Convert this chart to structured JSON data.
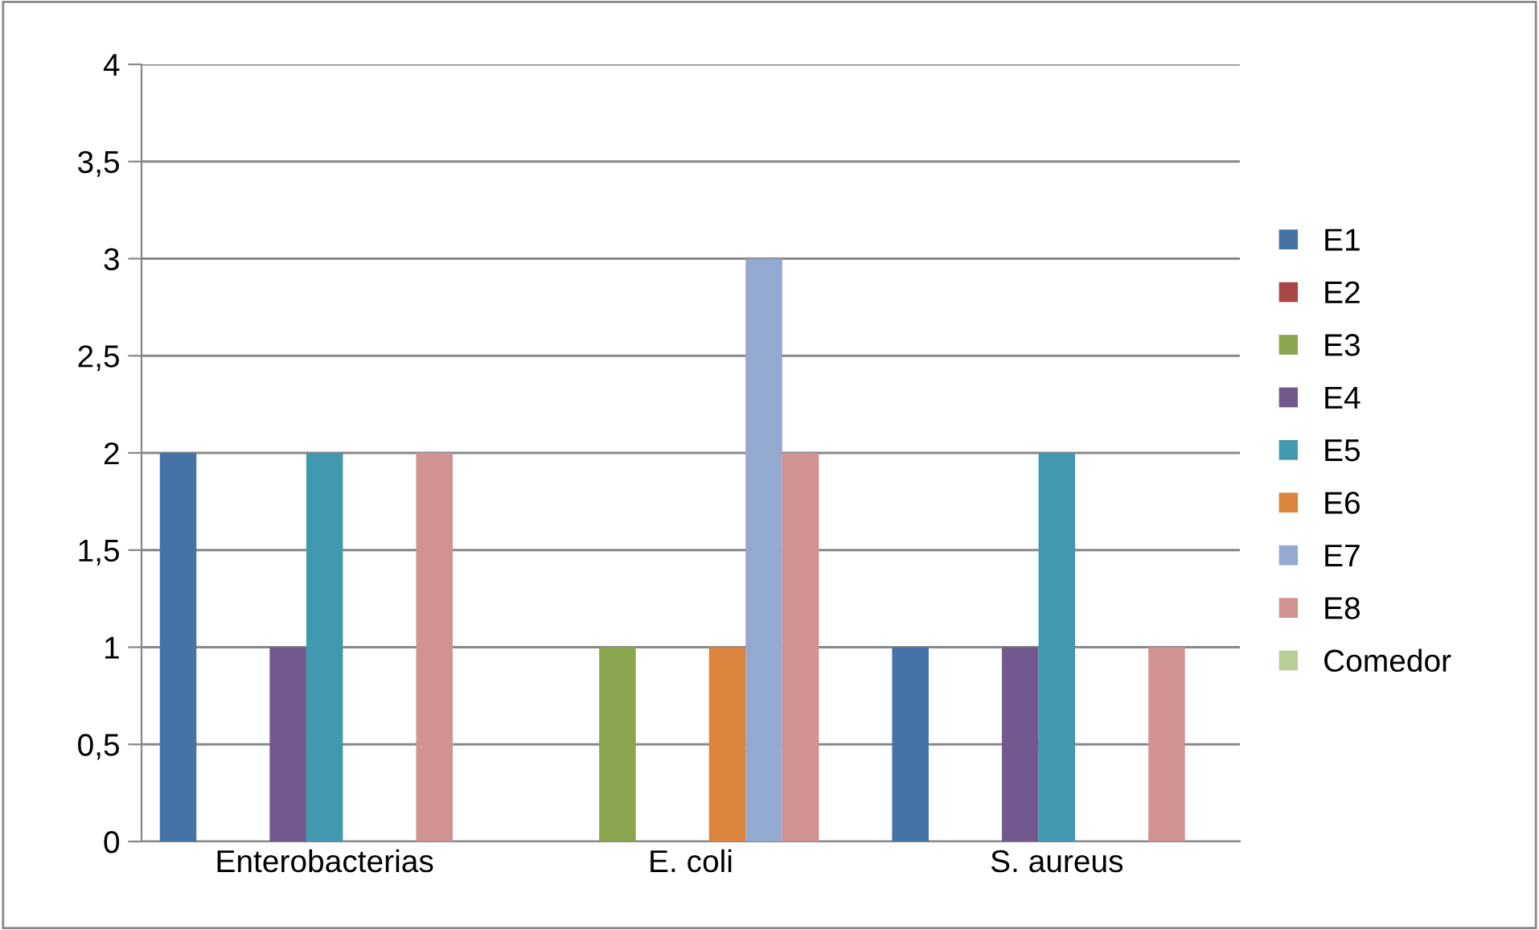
{
  "chart_data": {
    "type": "bar",
    "categories": [
      "Enterobacterias",
      "E. coli",
      "S. aureus"
    ],
    "series": [
      {
        "name": "E1",
        "color": "#4572a7",
        "values": [
          2,
          0,
          1
        ]
      },
      {
        "name": "E2",
        "color": "#aa4643",
        "values": [
          0,
          0,
          0
        ]
      },
      {
        "name": "E3",
        "color": "#89a54e",
        "values": [
          0,
          1,
          0
        ]
      },
      {
        "name": "E4",
        "color": "#71588f",
        "values": [
          1,
          0,
          1
        ]
      },
      {
        "name": "E5",
        "color": "#4198af",
        "values": [
          2,
          0,
          2
        ]
      },
      {
        "name": "E6",
        "color": "#db843d",
        "values": [
          0,
          1,
          0
        ]
      },
      {
        "name": "E7",
        "color": "#93a9cf",
        "values": [
          0,
          3,
          0
        ]
      },
      {
        "name": "E8",
        "color": "#d19392",
        "values": [
          2,
          2,
          1
        ]
      },
      {
        "name": "Comedor",
        "color": "#b9cd96",
        "values": [
          0,
          0,
          0
        ]
      }
    ],
    "ylim": [
      0,
      4
    ],
    "yticks": [
      0,
      {
        "value": 0.5,
        "label": "0,5"
      },
      1,
      {
        "value": 1.5,
        "label": "1,5"
      },
      2,
      {
        "value": 2.5,
        "label": "2,5"
      },
      3,
      {
        "value": 3.5,
        "label": "3,5"
      },
      4
    ],
    "grid": "y",
    "legend": "right"
  }
}
